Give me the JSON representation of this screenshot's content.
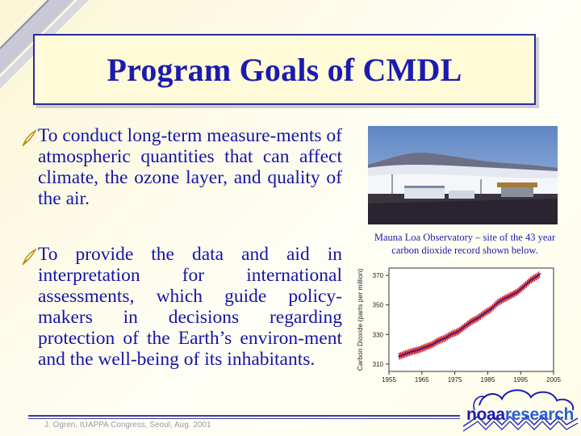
{
  "slide": {
    "title": "Program Goals of CMDL",
    "bullets": [
      {
        "icon": "quill-pen-icon",
        "text": "To conduct long-term measure-ments of atmospheric quantities that can affect climate, the ozone layer, and quality of the air."
      },
      {
        "icon": "quill-pen-icon",
        "text": "To provide the data and aid in interpretation for international assessments, which guide policy-makers in decisions regarding protection of the Earth’s environ-ment and the well-being of its inhabitants."
      }
    ],
    "photo_caption": "Mauna Loa Observatory – site of the 43 year carbon dioxide record shown below.",
    "footer": "J. Ogren, IUAPPA Congress, Seoul, Aug. 2001",
    "logo": {
      "noaa": "noaa",
      "research": "research"
    },
    "colors": {
      "title": "#1b1bb0",
      "bullet_text": "#1515a8",
      "co2_line": "#d02020",
      "trend_line": "#1b1bb0"
    }
  },
  "chart_data": {
    "type": "line",
    "title": "",
    "xlabel": "",
    "ylabel": "Carbon Dioxide (parts per million)",
    "xlim": [
      1955,
      2005
    ],
    "ylim": [
      305,
      375
    ],
    "x_ticks": [
      1955,
      1965,
      1975,
      1985,
      1995,
      2005
    ],
    "y_ticks": [
      310,
      330,
      350,
      370
    ],
    "series": [
      {
        "x": [
          1958,
          1960,
          1962,
          1964,
          1966,
          1968,
          1970,
          1972,
          1974,
          1976,
          1978,
          1980,
          1982,
          1984,
          1986,
          1988,
          1990,
          1992,
          1994,
          1996,
          1998,
          2000,
          2001
        ],
        "values": [
          315.2,
          316.9,
          318.4,
          319.6,
          321.4,
          323.0,
          325.7,
          327.5,
          330.2,
          332.0,
          335.4,
          338.7,
          341.1,
          344.4,
          347.2,
          351.5,
          354.2,
          356.4,
          358.8,
          362.6,
          366.7,
          369.4,
          371.0
        ]
      }
    ]
  }
}
